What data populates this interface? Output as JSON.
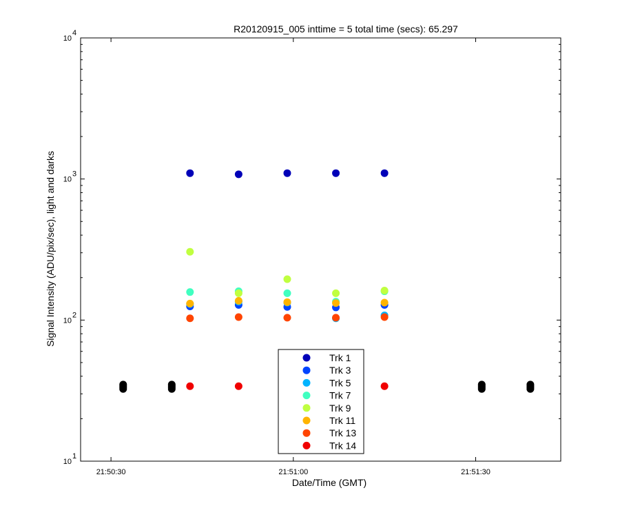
{
  "chart_data": {
    "type": "scatter",
    "title": "R20120915_005 inttime = 5 total time (secs): 65.297",
    "xlabel": "Date/Time (GMT)",
    "ylabel": "Signal Intensity (ADU/pix/sec), light and darks",
    "y_scale": "log",
    "ylim": [
      10,
      10000
    ],
    "xlim": [
      "21:50:25",
      "21:51:44"
    ],
    "x_ticks": [
      "21:50:30",
      "21:51:00",
      "21:51:30"
    ],
    "y_ticks": [
      {
        "base": "10",
        "exp": "1"
      },
      {
        "base": "10",
        "exp": "2"
      },
      {
        "base": "10",
        "exp": "3"
      },
      {
        "base": "10",
        "exp": "4"
      }
    ],
    "grid": false,
    "legend_position": "bottom-center",
    "series": [
      {
        "name": "Trk 1",
        "color": "#0000b8",
        "x": [
          "21:50:43",
          "21:50:51",
          "21:50:59",
          "21:51:07",
          "21:51:15"
        ],
        "y": [
          1100,
          1080,
          1100,
          1100,
          1100
        ]
      },
      {
        "name": "Trk 3",
        "color": "#0044ff",
        "x": [
          "21:50:43",
          "21:50:51",
          "21:50:59",
          "21:51:07",
          "21:51:15"
        ],
        "y": [
          125,
          128,
          124,
          123,
          128
        ]
      },
      {
        "name": "Trk 5",
        "color": "#00b4ff",
        "x": [
          "21:50:43",
          "21:50:51",
          "21:50:59",
          "21:51:07",
          "21:51:15"
        ],
        "y": [
          130,
          135,
          133,
          103,
          108
        ]
      },
      {
        "name": "Trk 7",
        "color": "#40ffc0",
        "x": [
          "21:50:43",
          "21:50:51",
          "21:50:59",
          "21:51:07",
          "21:51:15"
        ],
        "y": [
          158,
          160,
          155,
          135,
          160
        ]
      },
      {
        "name": "Trk 9",
        "color": "#c0ff40",
        "x": [
          "21:50:43",
          "21:50:51",
          "21:50:59",
          "21:51:07",
          "21:51:15"
        ],
        "y": [
          305,
          155,
          195,
          155,
          162
        ]
      },
      {
        "name": "Trk 11",
        "color": "#ffb400",
        "x": [
          "21:50:43",
          "21:50:51",
          "21:50:59",
          "21:51:07",
          "21:51:15"
        ],
        "y": [
          131,
          137,
          134,
          132,
          133
        ]
      },
      {
        "name": "Trk 13",
        "color": "#ff4400",
        "x": [
          "21:50:43",
          "21:50:51",
          "21:50:59",
          "21:51:07",
          "21:51:15"
        ],
        "y": [
          103,
          105,
          104,
          104,
          105
        ]
      },
      {
        "name": "Trk 14",
        "color": "#f00000",
        "x": [
          "21:50:43",
          "21:50:51",
          "21:50:59",
          "21:51:07",
          "21:51:15"
        ],
        "y": [
          34,
          34,
          34,
          34,
          34
        ]
      }
    ],
    "dark_series": {
      "color": "#000000",
      "x": [
        "21:50:32",
        "21:50:32",
        "21:50:32",
        "21:50:32",
        "21:50:40",
        "21:50:40",
        "21:50:40",
        "21:50:40",
        "21:51:31",
        "21:51:31",
        "21:51:31",
        "21:51:31",
        "21:51:39",
        "21:51:39",
        "21:51:39",
        "21:51:39"
      ],
      "y": [
        32.5,
        33.3,
        34.1,
        34.9,
        32.5,
        33.3,
        34.1,
        34.9,
        32.5,
        33.3,
        34.1,
        34.9,
        32.5,
        33.3,
        34.1,
        34.9
      ]
    }
  }
}
